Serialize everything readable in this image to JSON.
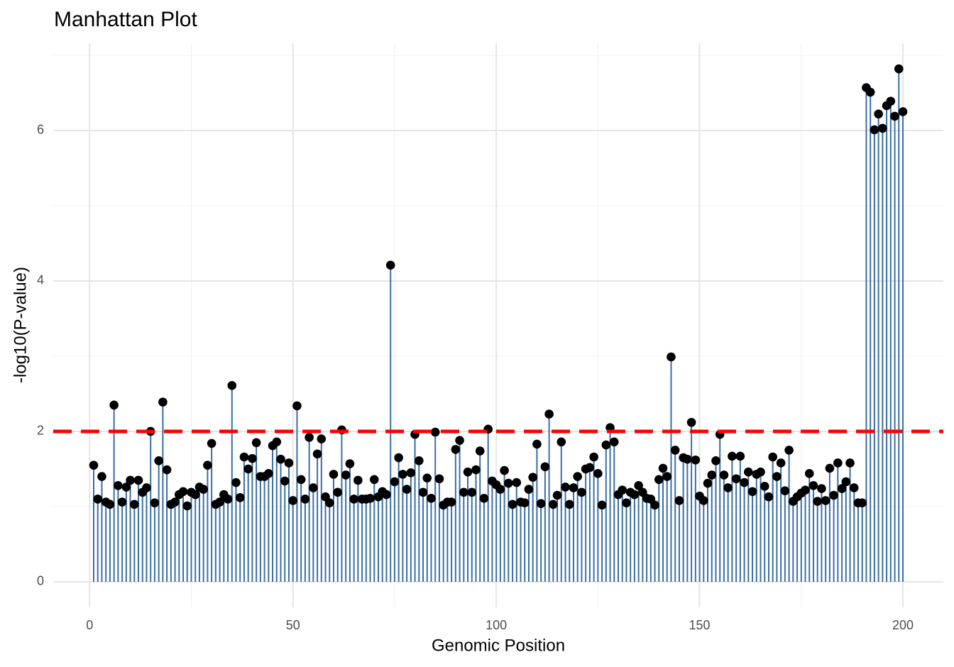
{
  "chart_data": {
    "type": "manhattan",
    "title": "Manhattan Plot",
    "x_label": "Genomic Position",
    "y_label": "-log10(P-value)",
    "x": [
      1,
      2,
      3,
      4,
      5,
      6,
      7,
      8,
      9,
      10,
      11,
      12,
      13,
      14,
      15,
      16,
      17,
      18,
      19,
      20,
      21,
      22,
      23,
      24,
      25,
      26,
      27,
      28,
      29,
      30,
      31,
      32,
      33,
      34,
      35,
      36,
      37,
      38,
      39,
      40,
      41,
      42,
      43,
      44,
      45,
      46,
      47,
      48,
      49,
      50,
      51,
      52,
      53,
      54,
      55,
      56,
      57,
      58,
      59,
      60,
      61,
      62,
      63,
      64,
      65,
      66,
      67,
      68,
      69,
      70,
      71,
      72,
      73,
      74,
      75,
      76,
      77,
      78,
      79,
      80,
      81,
      82,
      83,
      84,
      85,
      86,
      87,
      88,
      89,
      90,
      91,
      92,
      93,
      94,
      95,
      96,
      97,
      98,
      99,
      100,
      101,
      102,
      103,
      104,
      105,
      106,
      107,
      108,
      109,
      110,
      111,
      112,
      113,
      114,
      115,
      116,
      117,
      118,
      119,
      120,
      121,
      122,
      123,
      124,
      125,
      126,
      127,
      128,
      129,
      130,
      131,
      132,
      133,
      134,
      135,
      136,
      137,
      138,
      139,
      140,
      141,
      142,
      143,
      144,
      145,
      146,
      147,
      148,
      149,
      150,
      151,
      152,
      153,
      154,
      155,
      156,
      157,
      158,
      159,
      160,
      161,
      162,
      163,
      164,
      165,
      166,
      167,
      168,
      169,
      170,
      171,
      172,
      173,
      174,
      175,
      176,
      177,
      178,
      179,
      180,
      181,
      182,
      183,
      184,
      185,
      186,
      187,
      188,
      189,
      190,
      191,
      192,
      193,
      194,
      195,
      196,
      197,
      198,
      199,
      200
    ],
    "values": [
      1.55,
      1.1,
      1.4,
      1.06,
      1.03,
      2.35,
      1.28,
      1.06,
      1.26,
      1.35,
      1.03,
      1.35,
      1.19,
      1.25,
      2.0,
      1.05,
      1.61,
      2.39,
      1.49,
      1.03,
      1.06,
      1.16,
      1.2,
      1.01,
      1.19,
      1.16,
      1.26,
      1.23,
      1.55,
      1.84,
      1.03,
      1.06,
      1.16,
      1.1,
      2.61,
      1.32,
      1.12,
      1.66,
      1.5,
      1.64,
      1.85,
      1.4,
      1.4,
      1.44,
      1.81,
      1.86,
      1.63,
      1.34,
      1.58,
      1.08,
      2.34,
      1.36,
      1.1,
      1.92,
      1.25,
      1.7,
      1.9,
      1.13,
      1.05,
      1.43,
      1.19,
      2.02,
      1.42,
      1.57,
      1.1,
      1.35,
      1.1,
      1.1,
      1.11,
      1.36,
      1.13,
      1.2,
      1.16,
      4.21,
      1.33,
      1.65,
      1.43,
      1.23,
      1.45,
      1.96,
      1.61,
      1.19,
      1.38,
      1.11,
      1.99,
      1.37,
      1.02,
      1.06,
      1.06,
      1.76,
      1.88,
      1.19,
      1.46,
      1.19,
      1.49,
      1.74,
      1.11,
      2.03,
      1.34,
      1.29,
      1.23,
      1.48,
      1.31,
      1.03,
      1.32,
      1.06,
      1.05,
      1.23,
      1.39,
      1.83,
      1.04,
      1.53,
      2.23,
      1.03,
      1.15,
      1.86,
      1.26,
      1.03,
      1.25,
      1.4,
      1.19,
      1.5,
      1.52,
      1.66,
      1.44,
      1.02,
      1.82,
      2.05,
      1.86,
      1.16,
      1.22,
      1.05,
      1.19,
      1.16,
      1.28,
      1.19,
      1.11,
      1.1,
      1.02,
      1.36,
      1.51,
      1.4,
      2.99,
      1.75,
      1.08,
      1.65,
      1.63,
      2.12,
      1.62,
      1.14,
      1.08,
      1.31,
      1.42,
      1.61,
      1.96,
      1.42,
      1.25,
      1.67,
      1.37,
      1.67,
      1.32,
      1.46,
      1.2,
      1.43,
      1.46,
      1.27,
      1.13,
      1.66,
      1.4,
      1.58,
      1.21,
      1.75,
      1.07,
      1.13,
      1.18,
      1.22,
      1.44,
      1.28,
      1.07,
      1.24,
      1.08,
      1.51,
      1.15,
      1.58,
      1.24,
      1.33,
      1.58,
      1.25,
      1.05,
      1.05,
      6.57,
      6.51,
      6.01,
      6.22,
      6.03,
      6.33,
      6.39,
      6.19,
      6.82,
      6.25
    ],
    "color": "#3a6ea5",
    "point_color": "#000000",
    "threshold": {
      "value": 2,
      "color": "#ff0000"
    },
    "xlim": [
      -8.95,
      209.95
    ],
    "ylim": [
      -0.34,
      7.16
    ],
    "xticks": [
      0,
      50,
      100,
      150,
      200
    ],
    "yticks": [
      0,
      2,
      4,
      6
    ],
    "grid": true,
    "minor_grid": true
  }
}
